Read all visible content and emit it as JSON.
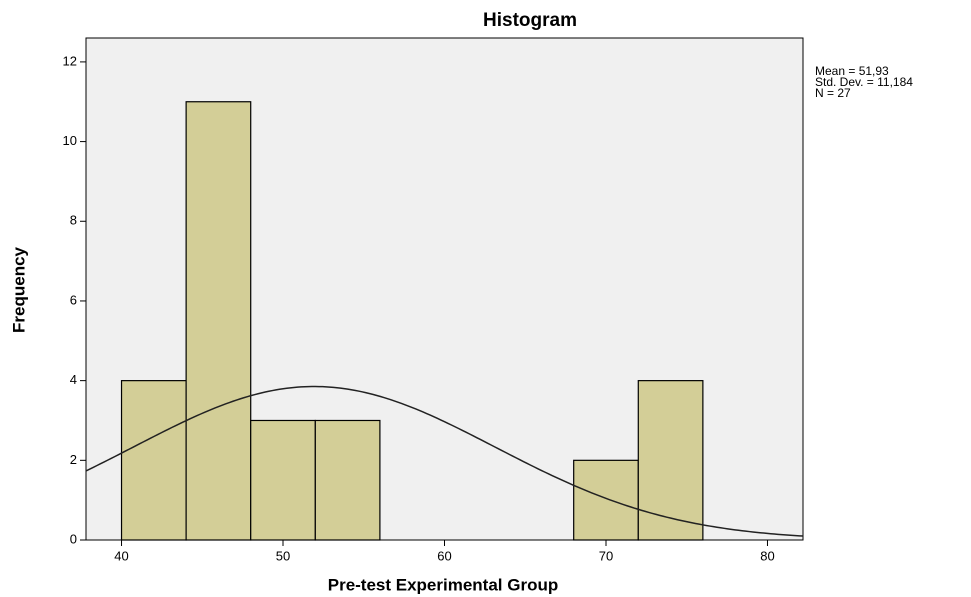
{
  "chart_data": {
    "type": "histogram",
    "title": "Histogram",
    "x_label": "Pre-test Experimental Group",
    "y_label": "Frequency",
    "bins": [
      40,
      44,
      48,
      52,
      56,
      60,
      64,
      68,
      72,
      76
    ],
    "values": [
      4,
      11,
      3,
      3,
      0,
      0,
      0,
      2,
      4
    ],
    "color": "#d3ce97",
    "xlim": [
      37.8,
      82.2
    ],
    "xticks": [
      40,
      50,
      60,
      70,
      80
    ],
    "ylim": [
      0,
      12.6
    ],
    "yticks": [
      0,
      2,
      4,
      6,
      8,
      10,
      12
    ],
    "normal_curve": true,
    "stats": [
      {
        "value": 51.93,
        "label": "Mean = 51,93"
      },
      {
        "value": 11.184,
        "label": "Std. Dev. = 11,184"
      },
      {
        "value": 27,
        "label": "N = 27"
      }
    ]
  }
}
